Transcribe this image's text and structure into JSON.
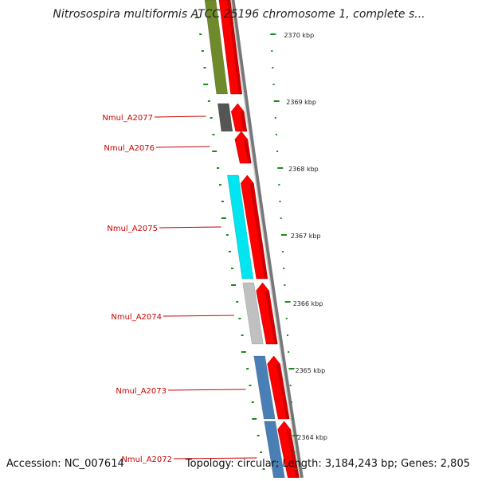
{
  "title": "Nitrosospira multiformis ATCC 25196 chromosome 1, complete s...",
  "footer": {
    "accession": "Accession: NC_007614",
    "topology": "Topology: circular; Length: 3,184,243 bp; Genes: 2,805"
  },
  "scale_labels": [
    "2370 kbp",
    "2369 kbp",
    "2368 kbp",
    "2367 kbp",
    "2366 kbp",
    "2365 kbp",
    "2364 kbp"
  ],
  "genes": [
    {
      "name": "",
      "color": "#6f8a2a"
    },
    {
      "name": "Nmul_A2077",
      "color": "#555555"
    },
    {
      "name": "Nmul_A2076",
      "color": ""
    },
    {
      "name": "Nmul_A2075",
      "color": "#00e5f0"
    },
    {
      "name": "Nmul_A2074",
      "color": "#c0c0c0"
    },
    {
      "name": "Nmul_A2073",
      "color": "#4a7fb5"
    },
    {
      "name": "Nmul_A2072",
      "color": "#4a7fb5"
    }
  ],
  "colors": {
    "label_red": "#cc0000",
    "arrow_red": "#ff0000",
    "tick_green": "#1a8a1a",
    "backbone_gray": "#777777"
  }
}
